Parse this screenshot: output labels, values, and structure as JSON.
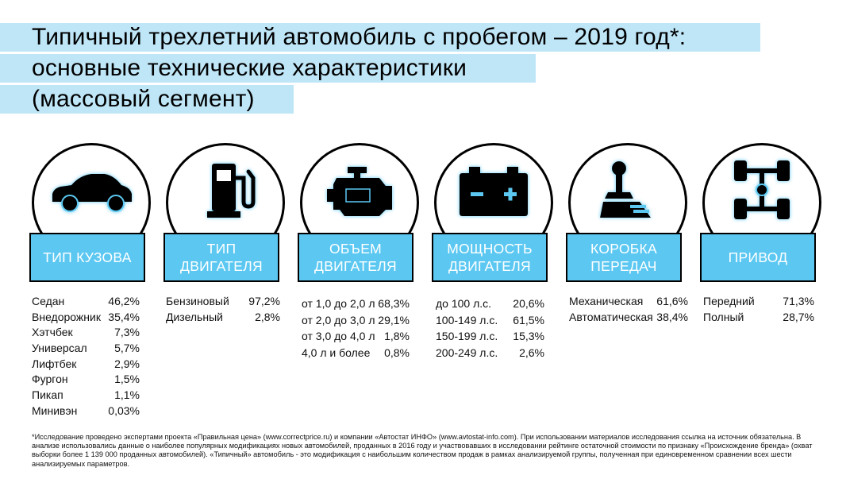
{
  "title": {
    "line1": "Типичный трехлетний автомобиль с пробегом – 2019 год*:",
    "line2": "основные технические характеристики",
    "line3": "(массовый сегмент)"
  },
  "colors": {
    "accent": "#5cc8f2",
    "title_bg": "#bfe6f7",
    "icon_glow": "#5cc8f2"
  },
  "chart_data": [
    {
      "type": "table",
      "label_lines": [
        "ТИП КУЗОВА"
      ],
      "icon": "car-icon",
      "rows": [
        {
          "name": "Седан",
          "value": "46,2%"
        },
        {
          "name": "Внедорожник",
          "value": "35,4%"
        },
        {
          "name": "Хэтчбек",
          "value": "7,3%"
        },
        {
          "name": "Универсал",
          "value": "5,7%"
        },
        {
          "name": "Лифтбек",
          "value": "2,9%"
        },
        {
          "name": "Фургон",
          "value": "1,5%"
        },
        {
          "name": "Пикап",
          "value": "1,1%"
        },
        {
          "name": "Минивэн",
          "value": "0,03%"
        }
      ]
    },
    {
      "type": "table",
      "label_lines": [
        "ТИП",
        "ДВИГАТЕЛЯ"
      ],
      "icon": "fuel-pump-icon",
      "rows": [
        {
          "name": "Бензиновый",
          "value": "97,2%"
        },
        {
          "name": "Дизельный",
          "value": "2,8%"
        }
      ]
    },
    {
      "type": "table",
      "label_lines": [
        "ОБЪЕМ",
        "ДВИГАТЕЛЯ"
      ],
      "icon": "engine-icon",
      "rows": [
        {
          "name": "от 1,0 до 2,0 л",
          "value": "68,3%"
        },
        {
          "name": "от 2,0 до 3,0 л",
          "value": "29,1%"
        },
        {
          "name": "от 3,0 до 4,0 л",
          "value": "1,8%"
        },
        {
          "name": "4,0 л и более",
          "value": "0,8%"
        }
      ]
    },
    {
      "type": "table",
      "label_lines": [
        "МОЩНОСТЬ",
        "ДВИГАТЕЛЯ"
      ],
      "icon": "battery-icon",
      "rows": [
        {
          "name": "до 100 л.с.",
          "value": "20,6%"
        },
        {
          "name": "100-149 л.с.",
          "value": "61,5%"
        },
        {
          "name": "150-199 л.с.",
          "value": "15,3%"
        },
        {
          "name": "200-249 л.с.",
          "value": "2,6%"
        }
      ]
    },
    {
      "type": "table",
      "label_lines": [
        "КОРОБКА",
        "ПЕРЕДАЧ"
      ],
      "icon": "gear-shift-icon",
      "rows": [
        {
          "name": "Механическая",
          "value": "61,6%"
        },
        {
          "name": "Автоматическая",
          "value": "38,4%"
        }
      ]
    },
    {
      "type": "table",
      "label_lines": [
        "ПРИВОД"
      ],
      "icon": "drivetrain-icon",
      "rows": [
        {
          "name": "Передний",
          "value": "71,3%"
        },
        {
          "name": "Полный",
          "value": "28,7%"
        }
      ]
    }
  ],
  "footnote": "*Исследование проведено экспертами проекта «Правильная цена» (www.correctprice.ru) и компании «Автостат ИНФО» (www.avtostat-info.com). При использовании материалов исследования ссылка на источник обязательна. В анализе использовались данные о наиболее популярных модификациях новых автомобилей, проданных в 2016 году и участвовавших в исследовании рейтинге остаточной стоимости по признаку «Происхождение бренда» (охват выборки более 1 139 000 проданных автомобилей). «Типичный» автомобиль - это модификация с наибольшим количеством продаж в рамках анализируемой группы, полученная при единовременном сравнении всех шести анализируемых параметров."
}
